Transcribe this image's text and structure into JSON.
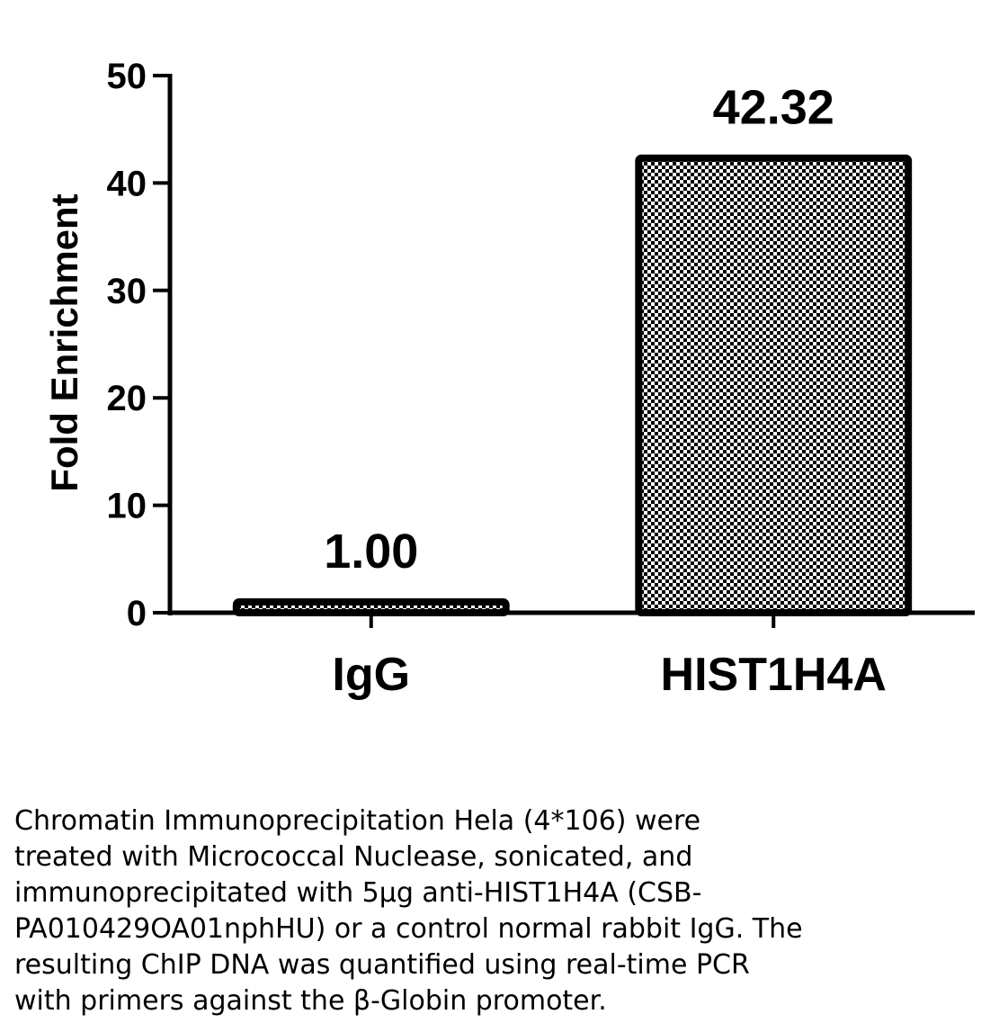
{
  "chart_data": {
    "type": "bar",
    "categories": [
      "IgG",
      "HIST1H4A"
    ],
    "values": [
      1.0,
      42.32
    ],
    "data_labels": [
      "1.00",
      "42.32"
    ],
    "title": "",
    "xlabel": "",
    "ylabel": "Fold Enrichment",
    "ylim": [
      0,
      50
    ],
    "yticks": [
      0,
      10,
      20,
      30,
      40,
      50
    ],
    "ytick_labels": [
      "0",
      "10",
      "20",
      "30",
      "40",
      "50"
    ],
    "grid": false,
    "legend": "none",
    "bar_fill": "checkerboard",
    "bar_edge_color": "#000000",
    "bar_fill_colors": [
      "#000000",
      "#ffffff"
    ]
  },
  "caption": {
    "lines": [
      "Chromatin Immunoprecipitation Hela (4*106) were",
      "treated with Micrococcal Nuclease, sonicated, and",
      "immunoprecipitated with 5µg anti-HIST1H4A (CSB-",
      "PA010429OA01nphHU) or a control normal rabbit IgG. The",
      "resulting ChIP DNA was quantified using real-time PCR",
      "with primers against the β-Globin promoter."
    ]
  }
}
